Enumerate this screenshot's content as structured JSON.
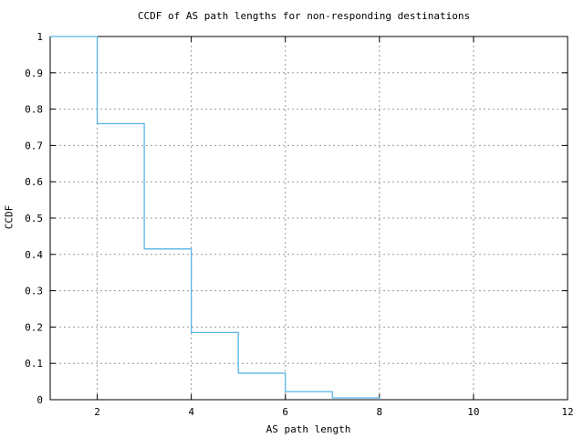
{
  "page": {
    "background": "#ffffff"
  },
  "chart_data": {
    "type": "line",
    "subtype": "step-ccdf",
    "title": "CCDF of AS path lengths for non-responding destinations",
    "xlabel": "AS path length",
    "ylabel": "CCDF",
    "xlim": [
      1,
      12
    ],
    "ylim": [
      0,
      1
    ],
    "grid": true,
    "grid_style": "dotted",
    "legend": "none",
    "xticks": [
      {
        "v": 2,
        "label": "2"
      },
      {
        "v": 4,
        "label": "4"
      },
      {
        "v": 6,
        "label": "6"
      },
      {
        "v": 8,
        "label": "8"
      },
      {
        "v": 10,
        "label": "10"
      },
      {
        "v": 12,
        "label": "12"
      }
    ],
    "yticks": [
      {
        "v": 0,
        "label": "0"
      },
      {
        "v": 0.1,
        "label": "0.1"
      },
      {
        "v": 0.2,
        "label": "0.2"
      },
      {
        "v": 0.3,
        "label": "0.3"
      },
      {
        "v": 0.4,
        "label": "0.4"
      },
      {
        "v": 0.5,
        "label": "0.5"
      },
      {
        "v": 0.6,
        "label": "0.6"
      },
      {
        "v": 0.7,
        "label": "0.7"
      },
      {
        "v": 0.8,
        "label": "0.8"
      },
      {
        "v": 0.9,
        "label": "0.9"
      },
      {
        "v": 1,
        "label": "1"
      }
    ],
    "steps_note": "each [x, ccdf] value holds from that x until the next x",
    "steps": [
      [
        1,
        1
      ],
      [
        2,
        0.76
      ],
      [
        3,
        0.415
      ],
      [
        4,
        0.185
      ],
      [
        5,
        0.073
      ],
      [
        6,
        0.022
      ],
      [
        7,
        0.005
      ],
      [
        8,
        0
      ]
    ],
    "line_color": "#58b5e8",
    "grid_color": "#999999",
    "axis_color": "#000000"
  }
}
